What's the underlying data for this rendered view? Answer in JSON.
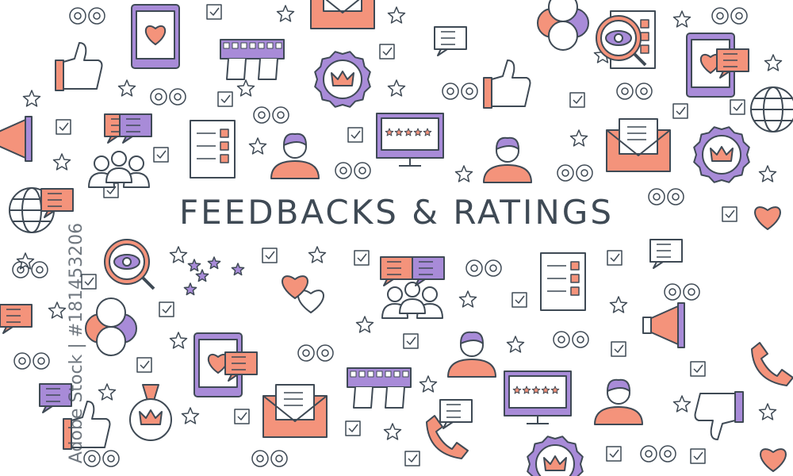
{
  "banner": {
    "title": "FEEDBACKS & RATINGS",
    "watermark": "Adobe Stock | #181453206"
  },
  "colors": {
    "outline": "#3f4a55",
    "accent_orange": "#f4937b",
    "accent_purple": "#a88bd8",
    "background": "#ffffff"
  },
  "icons": [
    "star",
    "checkbox",
    "glasses",
    "heart",
    "chat-bubble",
    "thumbs-up",
    "thumbs-down",
    "envelope",
    "tablet",
    "keyboard",
    "badge-crown",
    "monitor-rating",
    "user-avatar",
    "magnifier-eye",
    "megaphone",
    "globe",
    "phone",
    "emoji-faces",
    "checklist",
    "team",
    "medal"
  ]
}
